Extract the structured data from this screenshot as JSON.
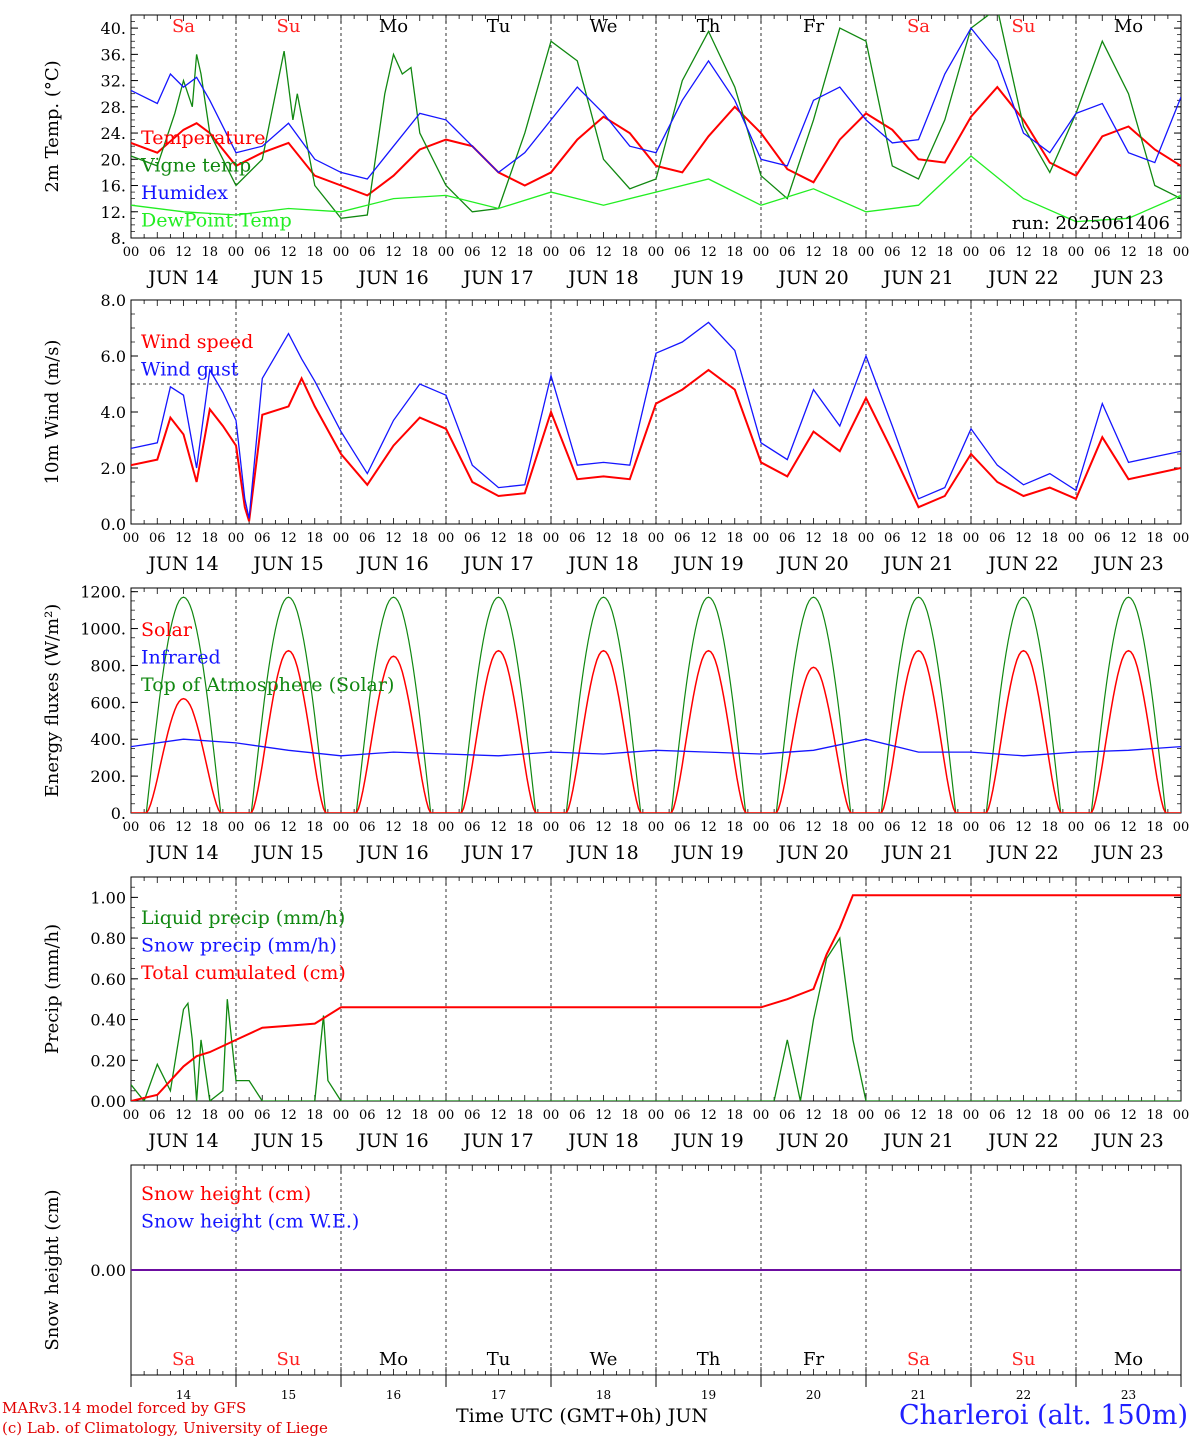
{
  "run_label": "run: 2025061406",
  "footer": {
    "model": "MARv3.14 model forced by GFS",
    "copyright": "(c) Lab. of Climatology, University of Liege",
    "x_title": "Time UTC (GMT+0h) JUN",
    "station": "Charleroi (alt. 150m)"
  },
  "colors": {
    "red": "#ff0000",
    "green": "#118811",
    "blue": "#1515ff",
    "lightgreen": "#22ee22",
    "weekend": "#ff2020"
  },
  "weekdays": [
    "Sa",
    "Su",
    "Mo",
    "Tu",
    "We",
    "Th",
    "Fr",
    "Sa",
    "Su",
    "Mo"
  ],
  "weekend_flags": [
    true,
    true,
    false,
    false,
    false,
    false,
    false,
    true,
    true,
    false
  ],
  "day_labels": [
    "JUN 14",
    "JUN 15",
    "JUN 16",
    "JUN 17",
    "JUN 18",
    "JUN 19",
    "JUN 20",
    "JUN 21",
    "JUN 22",
    "JUN 23"
  ],
  "day_numbers": [
    "14",
    "15",
    "16",
    "17",
    "18",
    "19",
    "20",
    "21",
    "22",
    "23"
  ],
  "hour_ticks": [
    "00",
    "06",
    "12",
    "18"
  ],
  "chart_data": [
    {
      "type": "line",
      "ylabel": "2m Temp. (°C)",
      "ylim": [
        8,
        42
      ],
      "yticks": [
        "8.",
        "12.",
        "16.",
        "20.",
        "24.",
        "28.",
        "32.",
        "36.",
        "40."
      ],
      "ytick_values": [
        8,
        12,
        16,
        20,
        24,
        28,
        32,
        36,
        40
      ],
      "x_unit": "hours since Jun 14 00 UTC",
      "x_range": [
        0,
        240
      ],
      "legend": [
        "Temperature",
        "Vigne temp",
        "Humidex",
        "DewPoint Temp"
      ],
      "series": [
        {
          "name": "Temperature",
          "color": "red",
          "x": [
            0,
            6,
            12,
            15,
            18,
            24,
            30,
            36,
            42,
            48,
            54,
            60,
            66,
            72,
            78,
            84,
            90,
            96,
            102,
            108,
            114,
            120,
            126,
            132,
            138,
            144,
            150,
            156,
            162,
            168,
            174,
            180,
            186,
            192,
            198,
            204,
            210,
            216,
            222,
            228,
            234,
            240
          ],
          "values": [
            22.5,
            21,
            24.5,
            25.5,
            24,
            19,
            21,
            22.5,
            17.5,
            16,
            14.5,
            17.5,
            21.5,
            23,
            22,
            18,
            16,
            18,
            23,
            26.5,
            24,
            19,
            18,
            23.5,
            28,
            24,
            18.5,
            16.5,
            23,
            27,
            24.5,
            20,
            19.5,
            26.5,
            31,
            26,
            19.5,
            17.5,
            23.5,
            25,
            21.5,
            19
          ]
        },
        {
          "name": "Vigne temp",
          "color": "green",
          "x": [
            0,
            6,
            10,
            12,
            14,
            15,
            16,
            18,
            24,
            30,
            35,
            37,
            38,
            42,
            48,
            54,
            58,
            60,
            62,
            64,
            66,
            72,
            78,
            84,
            90,
            96,
            102,
            108,
            114,
            120,
            126,
            132,
            138,
            144,
            150,
            156,
            162,
            168,
            174,
            180,
            186,
            192,
            198,
            204,
            210,
            216,
            222,
            228,
            234,
            240
          ],
          "values": [
            20.5,
            19,
            27,
            32,
            28,
            36,
            33,
            24,
            16,
            20,
            36.5,
            26,
            30,
            16,
            11,
            11.5,
            30,
            36,
            33,
            34,
            24,
            16,
            12,
            12.5,
            24,
            38,
            35,
            20,
            15.5,
            17,
            32,
            39.5,
            31,
            17.5,
            14,
            26,
            40,
            38,
            19,
            17,
            26,
            40,
            43,
            25,
            18,
            27,
            38,
            30,
            16,
            14
          ]
        },
        {
          "name": "Humidex",
          "color": "blue",
          "x": [
            0,
            6,
            9,
            12,
            15,
            18,
            24,
            30,
            36,
            42,
            48,
            54,
            60,
            66,
            72,
            78,
            84,
            90,
            96,
            102,
            108,
            114,
            120,
            126,
            132,
            138,
            144,
            150,
            156,
            162,
            168,
            174,
            180,
            186,
            192,
            198,
            204,
            210,
            216,
            222,
            228,
            234,
            240
          ],
          "values": [
            30.5,
            28.5,
            33,
            31,
            32.5,
            29,
            21,
            22,
            25.5,
            20,
            18,
            17,
            22,
            27,
            26,
            22,
            18,
            21,
            26,
            31,
            27,
            22,
            21,
            29,
            35,
            29,
            20,
            19,
            29,
            31,
            26,
            22.5,
            23,
            33,
            40,
            35,
            24,
            21,
            27,
            28.5,
            21,
            19.5,
            29.5
          ]
        },
        {
          "name": "DewPoint Temp",
          "color": "lightgreen",
          "x": [
            0,
            12,
            24,
            36,
            48,
            60,
            72,
            84,
            96,
            108,
            120,
            132,
            144,
            156,
            168,
            180,
            192,
            204,
            216,
            228,
            240
          ],
          "values": [
            13,
            12,
            11.5,
            12.5,
            12,
            14,
            14.5,
            12.5,
            15,
            13,
            15,
            17,
            13,
            15.5,
            12,
            13,
            20.5,
            14,
            10.5,
            11,
            14.5
          ]
        }
      ]
    },
    {
      "type": "line",
      "ylabel": "10m Wind (m/s)",
      "ylim": [
        0,
        8
      ],
      "yticks": [
        "0.0",
        "2.0",
        "4.0",
        "6.0",
        "8.0"
      ],
      "ytick_values": [
        0,
        2,
        4,
        6,
        8
      ],
      "reference_line": 5,
      "legend": [
        "Wind speed",
        "Wind gust"
      ],
      "series": [
        {
          "name": "Wind speed",
          "color": "red",
          "x": [
            0,
            6,
            9,
            12,
            15,
            18,
            21,
            24,
            26,
            27,
            30,
            36,
            39,
            42,
            48,
            54,
            60,
            66,
            72,
            78,
            84,
            90,
            96,
            102,
            108,
            114,
            120,
            126,
            132,
            138,
            144,
            150,
            156,
            162,
            168,
            174,
            180,
            186,
            192,
            198,
            204,
            210,
            216,
            222,
            228,
            234,
            240
          ],
          "values": [
            2.1,
            2.3,
            3.8,
            3.2,
            1.5,
            4.1,
            3.5,
            2.8,
            0.6,
            0.1,
            3.9,
            4.2,
            5.2,
            4.2,
            2.5,
            1.4,
            2.8,
            3.8,
            3.4,
            1.5,
            1.0,
            1.1,
            4.0,
            1.6,
            1.7,
            1.6,
            4.3,
            4.8,
            5.5,
            4.8,
            2.2,
            1.7,
            3.3,
            2.6,
            4.5,
            2.6,
            0.6,
            1.0,
            2.5,
            1.5,
            1.0,
            1.3,
            0.9,
            3.1,
            1.6,
            1.8,
            2.0
          ]
        },
        {
          "name": "Wind gust",
          "color": "blue",
          "x": [
            0,
            6,
            9,
            12,
            15,
            18,
            21,
            24,
            26,
            27,
            30,
            36,
            39,
            42,
            48,
            54,
            60,
            66,
            72,
            78,
            84,
            90,
            96,
            102,
            108,
            114,
            120,
            126,
            132,
            138,
            144,
            150,
            156,
            162,
            168,
            174,
            180,
            186,
            192,
            198,
            204,
            210,
            216,
            222,
            228,
            234,
            240
          ],
          "values": [
            2.7,
            2.9,
            4.9,
            4.6,
            2.0,
            5.5,
            4.7,
            3.7,
            0.9,
            0.2,
            5.2,
            6.8,
            5.9,
            5.1,
            3.3,
            1.8,
            3.7,
            5.0,
            4.6,
            2.1,
            1.3,
            1.4,
            5.3,
            2.1,
            2.2,
            2.1,
            6.1,
            6.5,
            7.2,
            6.2,
            2.9,
            2.3,
            4.8,
            3.5,
            6.0,
            3.5,
            0.9,
            1.3,
            3.4,
            2.1,
            1.4,
            1.8,
            1.2,
            4.3,
            2.2,
            2.4,
            2.6
          ]
        }
      ]
    },
    {
      "type": "line",
      "ylabel": "Energy fluxes (W/m²)",
      "ylim": [
        0,
        1220
      ],
      "yticks": [
        "0.",
        "200.",
        "400.",
        "600.",
        "800.",
        "1000.",
        "1200."
      ],
      "ytick_values": [
        0,
        200,
        400,
        600,
        800,
        1000,
        1200
      ],
      "legend": [
        "Solar",
        "Infrared",
        "Top of Atmosphere (Solar)"
      ],
      "toa_daily_peak": 1170,
      "solar_daily_peak": [
        620,
        880,
        850,
        880,
        880,
        880,
        790,
        880,
        880,
        880
      ],
      "series": [
        {
          "name": "Infrared",
          "color": "blue",
          "x": [
            0,
            12,
            24,
            36,
            48,
            60,
            72,
            84,
            96,
            108,
            120,
            132,
            144,
            156,
            168,
            180,
            192,
            204,
            216,
            228,
            240
          ],
          "values": [
            360,
            400,
            380,
            340,
            310,
            330,
            320,
            310,
            330,
            320,
            340,
            330,
            320,
            340,
            400,
            330,
            330,
            310,
            330,
            340,
            360
          ]
        }
      ]
    },
    {
      "type": "line",
      "ylabel": "Precip (mm/h)",
      "ylim": [
        0,
        1.1
      ],
      "yticks": [
        "0.00",
        "0.20",
        "0.40",
        "0.60",
        "0.80",
        "1.00"
      ],
      "ytick_values": [
        0,
        0.2,
        0.4,
        0.6,
        0.8,
        1.0
      ],
      "legend": [
        "Liquid precip (mm/h)",
        "Snow precip (mm/h)",
        "Total cumulated (cm)"
      ],
      "series": [
        {
          "name": "Liquid precip (mm/h)",
          "color": "green",
          "x": [
            0,
            3,
            6,
            9,
            12,
            13,
            14,
            15,
            16,
            18,
            21,
            22,
            23,
            24,
            27,
            30,
            36,
            42,
            44,
            45,
            48,
            144,
            147,
            150,
            153,
            156,
            159,
            162,
            165,
            168,
            240
          ],
          "values": [
            0.08,
            0,
            0.18,
            0.05,
            0.45,
            0.48,
            0.3,
            0,
            0.3,
            0,
            0.05,
            0.5,
            0.3,
            0.1,
            0.1,
            0,
            0,
            0,
            0.42,
            0.1,
            0,
            0,
            0,
            0.3,
            0,
            0.4,
            0.7,
            0.8,
            0.3,
            0,
            0
          ]
        },
        {
          "name": "Total cumulated (cm)",
          "color": "red",
          "x": [
            0,
            6,
            12,
            15,
            18,
            24,
            30,
            36,
            42,
            48,
            144,
            150,
            156,
            159,
            162,
            165,
            168,
            240
          ],
          "values": [
            0,
            0.03,
            0.17,
            0.22,
            0.24,
            0.3,
            0.36,
            0.37,
            0.38,
            0.46,
            0.46,
            0.5,
            0.55,
            0.72,
            0.85,
            1.01,
            1.01,
            1.01
          ]
        }
      ]
    },
    {
      "type": "line",
      "ylabel": "Snow height (cm)",
      "ylim": [
        -1,
        1
      ],
      "yticks": [
        "0.00"
      ],
      "ytick_values": [
        0
      ],
      "legend": [
        "Snow height (cm)",
        "Snow height (cm W.E.)"
      ],
      "series": [
        {
          "name": "Snow height (cm)",
          "color": "red",
          "x": [
            0,
            240
          ],
          "values": [
            0,
            0
          ]
        },
        {
          "name": "Snow height (cm W.E.)",
          "color": "blue",
          "x": [
            0,
            240
          ],
          "values": [
            0,
            0
          ]
        }
      ]
    }
  ]
}
